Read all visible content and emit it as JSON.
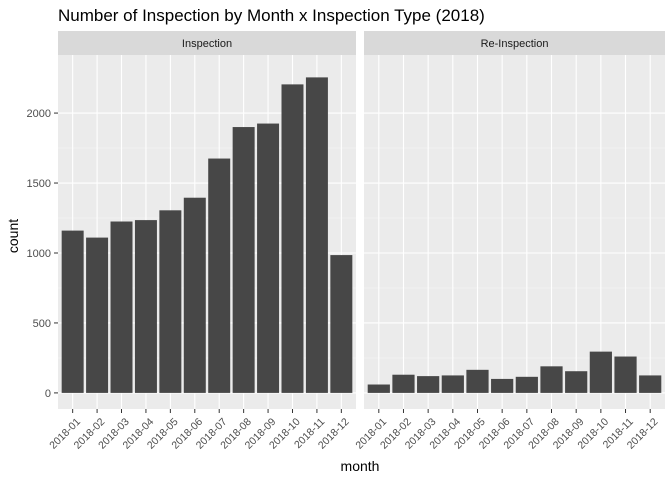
{
  "chart_data": {
    "type": "bar",
    "title": "Number of Inspection by Month x Inspection Type (2018)",
    "xlabel": "month",
    "ylabel": "count",
    "ylim": [
      0,
      2300
    ],
    "y_ticks": [
      0,
      500,
      1000,
      1500,
      2000
    ],
    "categories": [
      "2018-01",
      "2018-02",
      "2018-03",
      "2018-04",
      "2018-05",
      "2018-06",
      "2018-07",
      "2018-08",
      "2018-09",
      "2018-10",
      "2018-11",
      "2018-12"
    ],
    "facets": [
      {
        "name": "Inspection",
        "values": [
          1160,
          1110,
          1225,
          1235,
          1305,
          1395,
          1675,
          1900,
          1925,
          2205,
          2255,
          985
        ]
      },
      {
        "name": "Re-Inspection",
        "values": [
          60,
          130,
          120,
          125,
          165,
          100,
          115,
          190,
          155,
          295,
          260,
          125
        ]
      }
    ],
    "grid": true,
    "colors": {
      "bar": "#474747",
      "panel": "#ebebeb",
      "strip": "#d9d9d9",
      "grid_major": "#ffffff",
      "grid_minor": "#f5f5f5",
      "text": "#000000",
      "tick_text": "#4d4d4d"
    }
  }
}
